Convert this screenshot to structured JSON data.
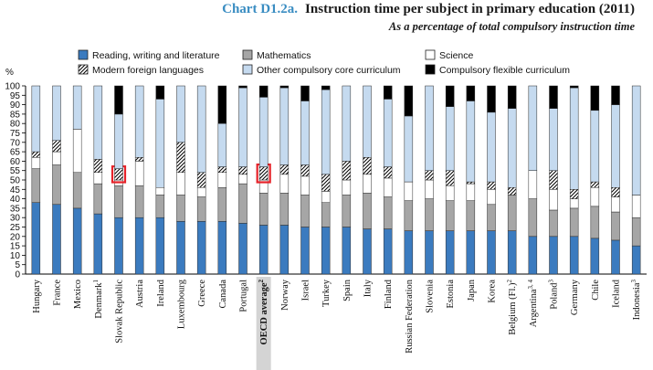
{
  "header": {
    "chart_label": "Chart D1.2a.",
    "title": "Instruction time per subject in primary education (2011)",
    "subtitle": "As a percentage of total compulsory instruction time"
  },
  "colors": {
    "reading": "#3b7bbf",
    "math": "#a6a6a6",
    "science": "#ffffff",
    "foreign": "hatch",
    "other": "#c5daef",
    "flexible": "#000000",
    "highlight_box": "#e62229",
    "oecd_label_bg": "#d4d4d4"
  },
  "chart_data": {
    "type": "bar",
    "stacked": true,
    "ylabel": "%",
    "ylim": [
      0,
      100
    ],
    "yticks": [
      0,
      5,
      10,
      15,
      20,
      25,
      30,
      35,
      40,
      45,
      50,
      55,
      60,
      65,
      70,
      75,
      80,
      85,
      90,
      95,
      100
    ],
    "grid": false,
    "legend_position": "top",
    "categories": [
      {
        "name": "Hungary",
        "sup": ""
      },
      {
        "name": "France",
        "sup": ""
      },
      {
        "name": "Mexico",
        "sup": ""
      },
      {
        "name": "Denmark",
        "sup": "1"
      },
      {
        "name": "Slovak Republic",
        "sup": ""
      },
      {
        "name": "Austria",
        "sup": ""
      },
      {
        "name": "Ireland",
        "sup": ""
      },
      {
        "name": "Luxembourg",
        "sup": ""
      },
      {
        "name": "Greece",
        "sup": ""
      },
      {
        "name": "Canada",
        "sup": ""
      },
      {
        "name": "Portugal",
        "sup": ""
      },
      {
        "name": "OECD average",
        "sup": "2"
      },
      {
        "name": "Norway",
        "sup": ""
      },
      {
        "name": "Israel",
        "sup": ""
      },
      {
        "name": "Turkey",
        "sup": ""
      },
      {
        "name": "Spain",
        "sup": ""
      },
      {
        "name": "Italy",
        "sup": ""
      },
      {
        "name": "Finland",
        "sup": ""
      },
      {
        "name": "Russian Federation",
        "sup": ""
      },
      {
        "name": "Slovenia",
        "sup": ""
      },
      {
        "name": "Estonia",
        "sup": ""
      },
      {
        "name": "Japan",
        "sup": ""
      },
      {
        "name": "Korea",
        "sup": ""
      },
      {
        "name": "Belgium (Fl.)",
        "sup": "2"
      },
      {
        "name": "Argentina",
        "sup": "3, 4"
      },
      {
        "name": "Poland",
        "sup": "3"
      },
      {
        "name": "Germany",
        "sup": ""
      },
      {
        "name": "Chile",
        "sup": ""
      },
      {
        "name": "Iceland",
        "sup": ""
      },
      {
        "name": "Indonesia",
        "sup": "3"
      }
    ],
    "series": [
      {
        "name": "Reading, writing and literature",
        "key": "reading",
        "values": [
          38,
          37,
          35,
          32,
          30,
          30,
          30,
          28,
          28,
          28,
          27,
          26,
          26,
          25,
          25,
          25,
          24,
          24,
          23,
          23,
          23,
          23,
          23,
          23,
          20,
          20,
          20,
          19,
          18,
          15
        ]
      },
      {
        "name": "Mathematics",
        "key": "math",
        "values": [
          18,
          21,
          19,
          16,
          17,
          17,
          12,
          14,
          13,
          18,
          21,
          17,
          17,
          17,
          13,
          17,
          19,
          17,
          16,
          17,
          16,
          16,
          14,
          19,
          20,
          14,
          15,
          17,
          15,
          15
        ]
      },
      {
        "name": "Science",
        "key": "science",
        "values": [
          6,
          7,
          23,
          6,
          3,
          13,
          4,
          12,
          5,
          8,
          5,
          7,
          10,
          10,
          6,
          8,
          10,
          10,
          10,
          10,
          8,
          9,
          8,
          0,
          15,
          11,
          5,
          10,
          8,
          12
        ]
      },
      {
        "name": "Modern foreign languages",
        "key": "foreign",
        "values": [
          3,
          6,
          0,
          7,
          6,
          2,
          0,
          16,
          8,
          3,
          4,
          7,
          5,
          6,
          9,
          10,
          9,
          6,
          0,
          5,
          8,
          1,
          4,
          4,
          0,
          10,
          5,
          3,
          5,
          0
        ]
      },
      {
        "name": "Other compulsory core curriculum",
        "key": "other",
        "values": [
          35,
          29,
          23,
          39,
          29,
          38,
          47,
          30,
          46,
          23,
          42,
          37,
          41,
          34,
          45,
          40,
          38,
          36,
          35,
          45,
          34,
          43,
          37,
          42,
          45,
          33,
          54,
          38,
          44,
          58
        ]
      },
      {
        "name": "Compulsory flexible curriculum",
        "key": "flexible",
        "values": [
          0,
          0,
          0,
          0,
          15,
          0,
          7,
          0,
          0,
          20,
          1,
          6,
          1,
          8,
          2,
          0,
          0,
          7,
          16,
          0,
          11,
          8,
          14,
          12,
          0,
          12,
          1,
          13,
          10,
          0
        ]
      }
    ],
    "highlighted": [
      "Slovak Republic",
      "OECD average"
    ],
    "highlight_note": "red box around modern foreign languages segment"
  }
}
